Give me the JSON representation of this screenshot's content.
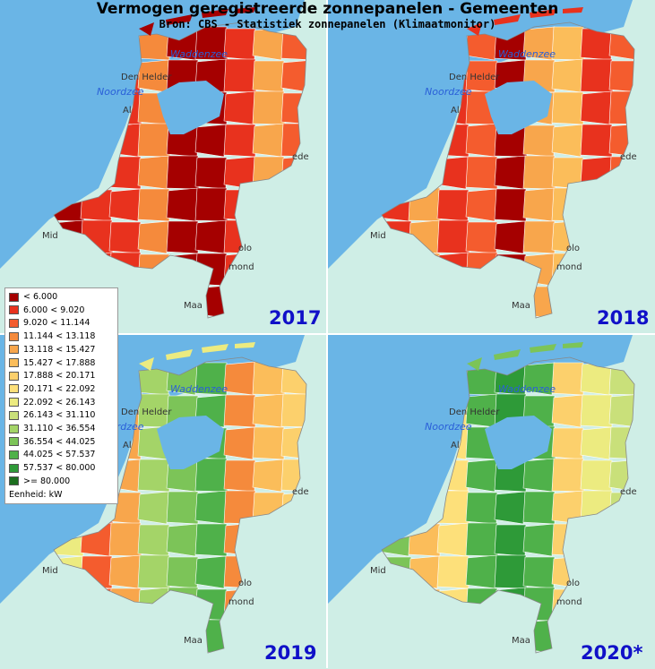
{
  "title": "Vermogen geregistreerde zonnepanelen - Gemeenten",
  "subtitle": "Bron: CBS - Statistiek zonnepanelen (Klimaatmonitor)",
  "panels": [
    {
      "year": "2017",
      "scheme": [
        0,
        0,
        1,
        0,
        2,
        0,
        1,
        0,
        3,
        0,
        2,
        4,
        0,
        1,
        5,
        0,
        2,
        0,
        1,
        3
      ]
    },
    {
      "year": "2018",
      "scheme": [
        1,
        2,
        0,
        3,
        2,
        4,
        1,
        5,
        3,
        2,
        6,
        1,
        0,
        4,
        2,
        7,
        3,
        1,
        5,
        2
      ]
    },
    {
      "year": "2019",
      "scheme": [
        8,
        10,
        3,
        11,
        6,
        12,
        4,
        9,
        0,
        13,
        7,
        5,
        11,
        2,
        14,
        8,
        6,
        12,
        3,
        10
      ]
    },
    {
      "year": "2020*",
      "scheme": [
        11,
        13,
        6,
        14,
        9,
        12,
        7,
        10,
        3,
        14,
        12,
        8,
        13,
        5,
        14,
        11,
        9,
        13,
        6,
        12
      ]
    }
  ],
  "labels": {
    "waddenzee": "Waddenzee",
    "noordzee": "Noordzee",
    "denhelder": "Den Helder",
    "al": "Al",
    "ede": "ede",
    "mid": "Mid",
    "olo": "olo",
    "mond": "mond",
    "maa": "Maa"
  },
  "legend": {
    "items": [
      {
        "label": "< 6.000",
        "color": "#a50000"
      },
      {
        "label": "6.000 < 9.020",
        "color": "#e8321e"
      },
      {
        "label": "9.020 < 11.144",
        "color": "#f45c2e"
      },
      {
        "label": "11.144 < 13.118",
        "color": "#f58a3c"
      },
      {
        "label": "13.118 < 15.427",
        "color": "#f8a64c"
      },
      {
        "label": "15.427 < 17.888",
        "color": "#fbbd5a"
      },
      {
        "label": "17.888 < 20.171",
        "color": "#fcd06c"
      },
      {
        "label": "20.171 < 22.092",
        "color": "#fde07a"
      },
      {
        "label": "22.092 < 26.143",
        "color": "#eceb80"
      },
      {
        "label": "26.143 < 31.110",
        "color": "#c9e07a"
      },
      {
        "label": "31.110 < 36.554",
        "color": "#a4d468"
      },
      {
        "label": "36.554 < 44.025",
        "color": "#7cc458"
      },
      {
        "label": "44.025 < 57.537",
        "color": "#4fb14a"
      },
      {
        "label": "57.537 < 80.000",
        "color": "#2e9a38"
      },
      {
        "label": ">= 80.000",
        "color": "#1b6e1e"
      }
    ],
    "unit": "Eenheid: kW"
  },
  "colors": {
    "sea": "#6ab5e6",
    "land_outside": "#cfeee6"
  }
}
